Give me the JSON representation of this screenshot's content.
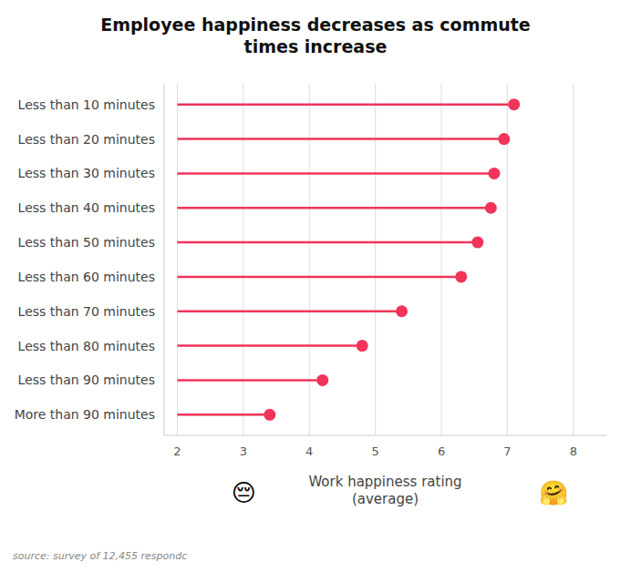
{
  "chart_data": {
    "type": "lollipop",
    "orientation": "horizontal",
    "title": "Employee happiness decreases as commute\ntimes increase",
    "categories": [
      "More than 90 minutes",
      "Less than 90 minutes",
      "Less than 80 minutes",
      "Less than 70 minutes",
      "Less than 60 minutes",
      "Less than 50 minutes",
      "Less than 40 minutes",
      "Less than 30 minutes",
      "Less than 20 minutes",
      "Less than 10 minutes"
    ],
    "values": [
      3.4,
      4.2,
      4.8,
      5.4,
      6.3,
      6.55,
      6.75,
      6.8,
      6.95,
      7.1
    ],
    "baseline": 2.0,
    "x_label": "Work happiness rating\n(average)",
    "xlim": [
      1.8,
      8.5
    ],
    "xticks": [
      2,
      3,
      4,
      5,
      6,
      7,
      8
    ],
    "color": "#F0345A",
    "grid": true,
    "source": "source: survey of 12,455 respondc",
    "annotations": [
      "😔",
      "🤗"
    ]
  }
}
